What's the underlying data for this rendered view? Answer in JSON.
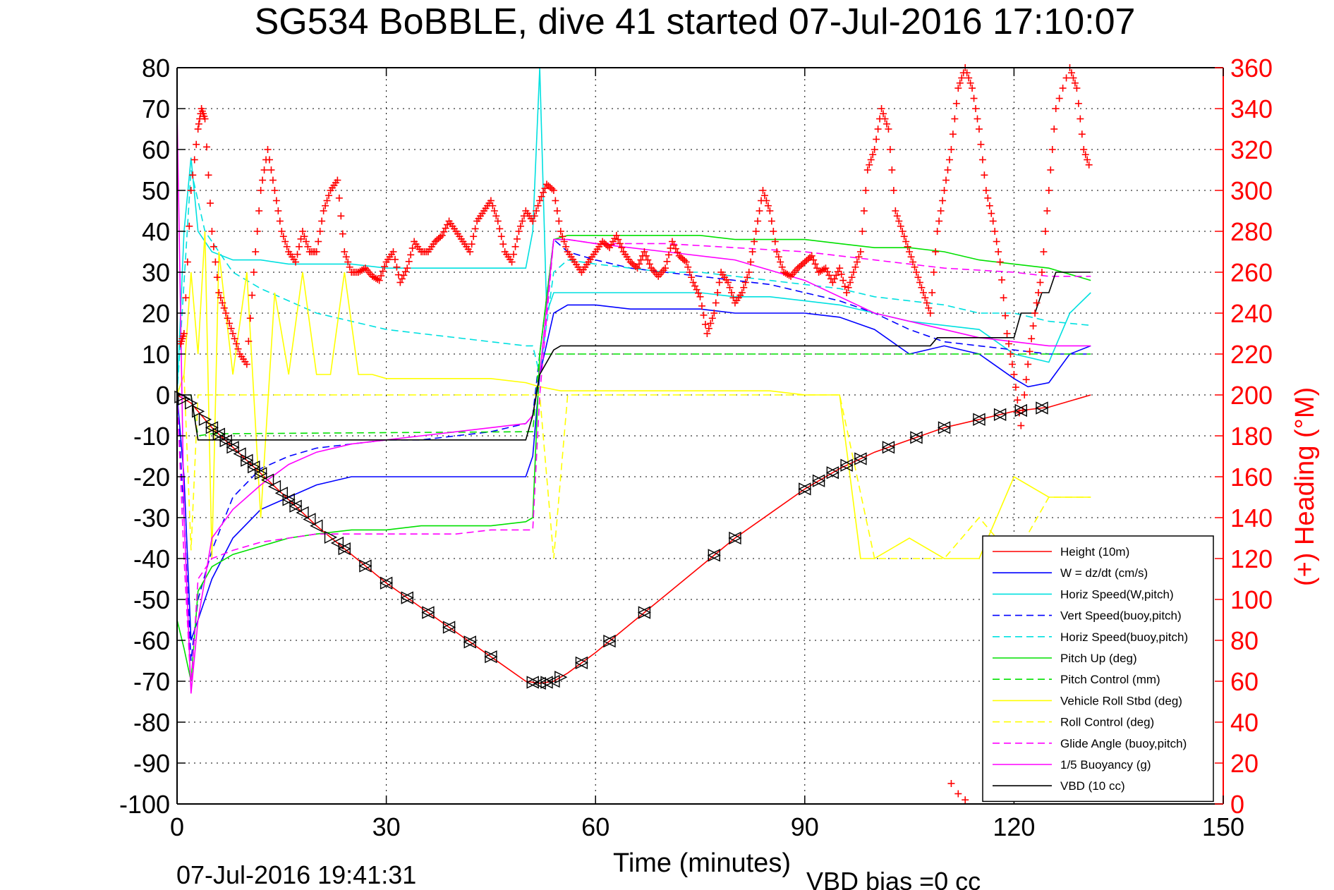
{
  "chart_data": {
    "type": "line",
    "title": "SG534 BoBBLE, dive 41 started 07-Jul-2016 17:10:07",
    "xlabel": "Time (minutes)",
    "ylabel": "",
    "y2label": "(+) Heading (°M)",
    "footer_left": "07-Jul-2016 19:41:31",
    "footer_right": "VBD bias =0 cc",
    "xlim": [
      0,
      150
    ],
    "ylim": [
      -100,
      80
    ],
    "y2lim": [
      0,
      360
    ],
    "xticks": [
      0,
      30,
      60,
      90,
      120,
      150
    ],
    "yticks": [
      -100,
      -90,
      -80,
      -70,
      -60,
      -50,
      -40,
      -30,
      -20,
      -10,
      0,
      10,
      20,
      30,
      40,
      50,
      60,
      70,
      80
    ],
    "y2ticks": [
      0,
      20,
      40,
      60,
      80,
      100,
      120,
      140,
      160,
      180,
      200,
      220,
      240,
      260,
      280,
      300,
      320,
      340,
      360
    ],
    "grid": true,
    "legend_position": "bottom-right",
    "colors": {
      "axis_left": "#000000",
      "axis_right": "#ff0000"
    },
    "series": [
      {
        "name": "Height (10m)",
        "color": "#ff0000",
        "style": "solid",
        "x": [
          0,
          2,
          5,
          10,
          15,
          20,
          25,
          30,
          35,
          40,
          45,
          50,
          52,
          54,
          56,
          60,
          65,
          70,
          75,
          80,
          85,
          90,
          95,
          100,
          105,
          110,
          115,
          120,
          125,
          131
        ],
        "y": [
          0,
          -2,
          -8,
          -16,
          -24,
          -32,
          -39,
          -46,
          -52,
          -58,
          -64,
          -70,
          -70.5,
          -70,
          -68,
          -63,
          -56,
          -49,
          -42,
          -35,
          -29,
          -23,
          -18,
          -14,
          -11,
          -8,
          -6,
          -4,
          -3,
          0
        ]
      },
      {
        "name": "W = dz/dt (cm/s)",
        "color": "#0000ff",
        "style": "solid",
        "x": [
          0,
          1,
          2,
          3,
          5,
          8,
          12,
          16,
          20,
          25,
          30,
          35,
          40,
          45,
          50,
          51,
          52,
          54,
          56,
          60,
          65,
          70,
          75,
          80,
          85,
          90,
          95,
          100,
          105,
          110,
          115,
          120,
          122,
          125,
          128,
          131
        ],
        "y": [
          0,
          -20,
          -60,
          -55,
          -45,
          -35,
          -28,
          -25,
          -22,
          -20,
          -20,
          -20,
          -20,
          -20,
          -20,
          -15,
          5,
          20,
          22,
          22,
          21,
          21,
          21,
          20,
          20,
          20,
          19,
          16,
          10,
          12,
          10,
          4,
          2,
          3,
          10,
          12
        ]
      },
      {
        "name": "Horiz Speed(W,pitch)",
        "color": "#00e0e0",
        "style": "solid",
        "x": [
          0,
          1,
          2,
          3,
          5,
          8,
          12,
          16,
          20,
          25,
          30,
          35,
          40,
          45,
          50,
          51,
          52,
          53,
          54,
          56,
          60,
          65,
          70,
          75,
          80,
          85,
          90,
          95,
          100,
          105,
          110,
          115,
          120,
          125,
          128,
          131
        ],
        "y": [
          0,
          40,
          58,
          40,
          35,
          33,
          33,
          32,
          32,
          32,
          31,
          31,
          31,
          31,
          31,
          40,
          80,
          20,
          25,
          25,
          25,
          25,
          25,
          25,
          24,
          24,
          23,
          22,
          20,
          18,
          17,
          16,
          10,
          8,
          20,
          25
        ]
      },
      {
        "name": "Vert Speed(buoy,pitch)",
        "color": "#0000ff",
        "style": "dashed",
        "x": [
          0,
          1,
          2,
          3,
          5,
          8,
          12,
          16,
          20,
          25,
          30,
          35,
          40,
          45,
          50,
          51,
          52,
          54,
          56,
          60,
          65,
          70,
          75,
          80,
          85,
          90,
          95,
          100,
          105,
          110,
          115,
          120,
          125,
          131
        ],
        "y": [
          0,
          -30,
          -65,
          -50,
          -38,
          -25,
          -18,
          -15,
          -13,
          -12,
          -11,
          -11,
          -10,
          -9,
          -7,
          -5,
          10,
          38,
          35,
          33,
          31,
          30,
          29,
          28,
          27,
          25,
          23,
          20,
          16,
          13,
          12,
          11,
          10,
          10
        ]
      },
      {
        "name": "Horiz Speed(buoy,pitch)",
        "color": "#00e0e0",
        "style": "dashed",
        "x": [
          0,
          2,
          4,
          8,
          12,
          16,
          20,
          25,
          30,
          35,
          40,
          45,
          50,
          51,
          52,
          54,
          56,
          60,
          65,
          70,
          75,
          80,
          85,
          90,
          95,
          100,
          105,
          110,
          115,
          120,
          125,
          131
        ],
        "y": [
          0,
          55,
          40,
          30,
          26,
          23,
          20,
          18,
          16,
          15,
          14,
          13,
          12,
          12,
          5,
          30,
          33,
          32,
          31,
          30,
          30,
          29,
          28,
          27,
          26,
          24,
          23,
          22,
          20,
          20,
          18,
          17
        ]
      },
      {
        "name": "Pitch Up (deg)",
        "color": "#00e000",
        "style": "solid",
        "x": [
          0,
          1,
          2,
          3,
          5,
          8,
          12,
          16,
          20,
          25,
          30,
          35,
          40,
          45,
          50,
          51,
          52,
          54,
          56,
          60,
          65,
          70,
          75,
          80,
          85,
          90,
          95,
          100,
          105,
          110,
          115,
          120,
          125,
          131
        ],
        "y": [
          -55,
          -62,
          -70,
          -48,
          -42,
          -39,
          -37,
          -35,
          -34,
          -33,
          -33,
          -32,
          -32,
          -32,
          -31,
          -30,
          10,
          38,
          39,
          39,
          39,
          39,
          39,
          38,
          38,
          38,
          37,
          36,
          36,
          35,
          33,
          32,
          31,
          28
        ]
      },
      {
        "name": "Pitch Control (mm)",
        "color": "#00e000",
        "style": "dashed",
        "x": [
          0,
          2,
          3,
          5,
          50,
          51,
          52,
          54,
          56,
          131
        ],
        "y": [
          0,
          0,
          -10,
          -9.5,
          -9,
          -9,
          10,
          10,
          10,
          10
        ]
      },
      {
        "name": "Vehicle Roll Stbd (deg)",
        "color": "#ffff00",
        "style": "solid",
        "x": [
          0,
          1,
          2,
          3,
          4,
          5,
          6,
          8,
          10,
          12,
          14,
          16,
          18,
          20,
          22,
          24,
          26,
          28,
          30,
          35,
          40,
          45,
          50,
          52,
          55,
          58,
          62,
          66,
          70,
          75,
          80,
          85,
          90,
          95,
          98,
          100,
          105,
          110,
          115,
          120,
          125,
          131
        ],
        "y": [
          0,
          5,
          30,
          10,
          40,
          -40,
          35,
          5,
          30,
          -30,
          25,
          5,
          30,
          5,
          5,
          30,
          5,
          5,
          4,
          4,
          4,
          4,
          3,
          2,
          1,
          1,
          1,
          1,
          1,
          1,
          1,
          1,
          0,
          0,
          -40,
          -40,
          -35,
          -40,
          -40,
          -20,
          -25,
          -25
        ]
      },
      {
        "name": "Roll Control (deg)",
        "color": "#ffff00",
        "style": "dashed",
        "x": [
          0,
          1,
          2,
          3,
          5,
          52,
          54,
          56,
          60,
          90,
          95,
          100,
          105,
          110,
          115,
          120,
          125,
          131
        ],
        "y": [
          0,
          5,
          -38,
          0,
          0,
          0,
          -40,
          0,
          0,
          0,
          0,
          -40,
          -40,
          -40,
          -30,
          -40,
          -25,
          -25
        ]
      },
      {
        "name": "Glide Angle (buoy,pitch)",
        "color": "#ff00ff",
        "style": "dashed",
        "x": [
          0,
          1,
          2,
          3,
          5,
          8,
          12,
          16,
          20,
          25,
          30,
          35,
          40,
          45,
          50,
          51,
          52,
          54,
          56,
          60,
          70,
          80,
          90,
          100,
          110,
          120,
          125,
          131
        ],
        "y": [
          0,
          -40,
          -72,
          -45,
          -40,
          -38,
          -36,
          -35,
          -34,
          -34,
          -34,
          -34,
          -34,
          -33,
          -33,
          -33,
          0,
          38,
          38,
          37,
          37,
          36,
          35,
          33,
          31,
          30,
          29,
          29
        ]
      },
      {
        "name": "1/5 Buoyancy (g)",
        "color": "#ff00ff",
        "style": "solid",
        "x": [
          0,
          1,
          2,
          3,
          5,
          8,
          12,
          16,
          20,
          25,
          30,
          35,
          40,
          45,
          50,
          51,
          52,
          54,
          56,
          60,
          70,
          80,
          90,
          100,
          110,
          115,
          120,
          125,
          131
        ],
        "y": [
          70,
          -30,
          -73,
          -55,
          -35,
          -28,
          -22,
          -17,
          -14,
          -12,
          -11,
          -10,
          -9,
          -8,
          -7,
          -5,
          5,
          38,
          38,
          37,
          35,
          33,
          28,
          20,
          16,
          14,
          13,
          12,
          12
        ]
      },
      {
        "name": "VBD (10 cc)",
        "color": "#000000",
        "style": "solid",
        "x": [
          0,
          2,
          3,
          50,
          51,
          52,
          54,
          55,
          90,
          108,
          109,
          120,
          121,
          123,
          124,
          125,
          126,
          131
        ],
        "y": [
          0,
          0,
          -11,
          -11,
          -5,
          5,
          11,
          12,
          12,
          12,
          14,
          14,
          20,
          20,
          25,
          25,
          30,
          30
        ]
      }
    ],
    "heading_points": {
      "axis": "y2",
      "color": "#ff0000",
      "marker": "+",
      "x": [
        0.5,
        1,
        2,
        3,
        3.5,
        4,
        5,
        6,
        7,
        8,
        9,
        10,
        11,
        12,
        13,
        14,
        15,
        16,
        17,
        18,
        19,
        20,
        21,
        22,
        23,
        24,
        25,
        26,
        27,
        28,
        29,
        30,
        31,
        32,
        33,
        34,
        35,
        36,
        37,
        38,
        39,
        40,
        41,
        42,
        43,
        44,
        45,
        46,
        47,
        48,
        49,
        50,
        51,
        52,
        53,
        54,
        55,
        56,
        57,
        58,
        59,
        60,
        61,
        62,
        63,
        64,
        65,
        66,
        67,
        68,
        69,
        70,
        71,
        72,
        73,
        74,
        75,
        76,
        77,
        78,
        79,
        80,
        81,
        82,
        83,
        84,
        85,
        86,
        87,
        88,
        89,
        90,
        91,
        92,
        93,
        94,
        95,
        96,
        97,
        98,
        99,
        100,
        101,
        102,
        103,
        104,
        105,
        106,
        107,
        108,
        109,
        110,
        111,
        112,
        113,
        114,
        115,
        116,
        117,
        118,
        119,
        120,
        121,
        122,
        123,
        124,
        125,
        126,
        128,
        129,
        130,
        131
      ],
      "y": [
        225,
        230,
        300,
        330,
        340,
        335,
        280,
        250,
        240,
        230,
        220,
        215,
        260,
        300,
        320,
        300,
        280,
        270,
        265,
        280,
        270,
        270,
        290,
        300,
        305,
        270,
        260,
        260,
        262,
        258,
        256,
        265,
        270,
        255,
        262,
        275,
        270,
        270,
        275,
        278,
        285,
        280,
        275,
        270,
        285,
        290,
        295,
        285,
        270,
        265,
        280,
        290,
        285,
        295,
        303,
        300,
        280,
        270,
        265,
        260,
        265,
        270,
        275,
        272,
        278,
        270,
        265,
        262,
        270,
        262,
        258,
        262,
        275,
        268,
        265,
        255,
        248,
        230,
        240,
        260,
        255,
        245,
        250,
        260,
        280,
        300,
        290,
        270,
        260,
        258,
        262,
        265,
        268,
        260,
        262,
        255,
        262,
        250,
        260,
        270,
        310,
        320,
        340,
        330,
        290,
        280,
        270,
        260,
        250,
        240,
        280,
        300,
        320,
        350,
        360,
        350,
        330,
        300,
        285,
        265,
        230,
        210,
        185,
        215,
        240,
        260,
        300,
        340,
        360,
        350,
        320,
        310
      ],
      "extra_low": {
        "x": [
          111,
          112,
          113
        ],
        "y": [
          10,
          5,
          2
        ]
      }
    },
    "markers_triangles": {
      "color": "#000000",
      "on_series": "Height (10m)",
      "x_left": [
        5,
        6,
        7,
        8,
        9,
        10,
        11,
        12,
        13,
        14,
        15,
        16,
        17,
        18,
        19,
        20,
        23,
        24,
        27,
        30,
        33,
        36,
        39,
        42,
        45,
        51,
        52,
        53,
        54,
        58,
        62,
        67,
        77,
        80,
        90,
        92,
        94,
        96,
        98,
        102,
        106,
        110,
        115,
        118,
        121,
        124
      ],
      "x_right": [
        0.5,
        1,
        2,
        3,
        4,
        5,
        6,
        7,
        8,
        10,
        11,
        12,
        16,
        17,
        22,
        24,
        27,
        30,
        33,
        36,
        39,
        42,
        45,
        51,
        53,
        55,
        58,
        62,
        67,
        77,
        80,
        90,
        92,
        94,
        96,
        98,
        102,
        106,
        110,
        115,
        118,
        121,
        124
      ]
    }
  }
}
